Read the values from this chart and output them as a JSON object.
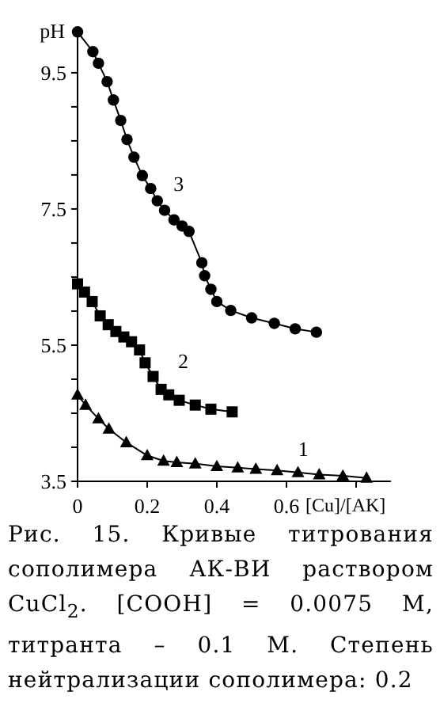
{
  "chart_data": {
    "type": "line",
    "xlabel": "[Cu]/[AK]",
    "ylabel": "pH",
    "xlim": [
      0,
      0.9
    ],
    "ylim": [
      3.5,
      10.15
    ],
    "xticks": [
      0,
      0.2,
      0.4,
      0.6,
      {
        "value": 0.8,
        "label": null
      }
    ],
    "yticks": [
      3.5,
      {
        "value": 4,
        "label": null
      },
      {
        "value": 4.5,
        "label": null
      },
      {
        "value": 5,
        "label": null
      },
      5.5,
      {
        "value": 6,
        "label": null
      },
      {
        "value": 6.5,
        "label": null
      },
      {
        "value": 7,
        "label": null
      },
      7.5,
      {
        "value": 8,
        "label": null
      },
      {
        "value": 8.5,
        "label": null
      },
      {
        "value": 9,
        "label": null
      },
      9.5
    ],
    "grid": false,
    "line_style": "solid",
    "series": [
      {
        "name": "1",
        "color": "#000000",
        "marker": "triangle",
        "x": [
          0,
          0.023,
          0.06,
          0.09,
          0.14,
          0.2,
          0.247,
          0.285,
          0.338,
          0.4,
          0.46,
          0.512,
          0.573,
          0.633,
          0.694,
          0.762,
          0.83
        ],
        "values": [
          4.77,
          4.62,
          4.42,
          4.27,
          4.07,
          3.88,
          3.8,
          3.78,
          3.76,
          3.72,
          3.7,
          3.68,
          3.66,
          3.63,
          3.6,
          3.58,
          3.55
        ]
      },
      {
        "name": "2",
        "color": "#000000",
        "marker": "square",
        "x": [
          0,
          0.02,
          0.042,
          0.065,
          0.088,
          0.11,
          0.133,
          0.155,
          0.178,
          0.194,
          0.217,
          0.24,
          0.262,
          0.292,
          0.338,
          0.383,
          0.444
        ],
        "values": [
          6.4,
          6.28,
          6.14,
          5.93,
          5.8,
          5.7,
          5.62,
          5.55,
          5.43,
          5.24,
          5.04,
          4.85,
          4.77,
          4.69,
          4.62,
          4.56,
          4.52
        ]
      },
      {
        "name": "3",
        "color": "#000000",
        "marker": "circle",
        "x": [
          0,
          0.044,
          0.06,
          0.085,
          0.103,
          0.124,
          0.142,
          0.162,
          0.186,
          0.21,
          0.229,
          0.25,
          0.277,
          0.3,
          0.32,
          0.357,
          0.365,
          0.383,
          0.4,
          0.44,
          0.5,
          0.565,
          0.625,
          0.686
        ],
        "values": [
          10.1,
          9.81,
          9.64,
          9.37,
          9.1,
          8.8,
          8.52,
          8.26,
          7.99,
          7.8,
          7.62,
          7.48,
          7.34,
          7.25,
          7.17,
          6.71,
          6.52,
          6.32,
          6.14,
          6.01,
          5.9,
          5.82,
          5.74,
          5.69
        ]
      }
    ],
    "annotations": [
      "Рис. 15. Кривые титрования сополимера АК-ВИ раствором CuCl$_{2}$. [COOH] = 0.0075 М, титранта – 0.1 М. Степень нейтрализации сополимера: 0.2"
    ]
  }
}
